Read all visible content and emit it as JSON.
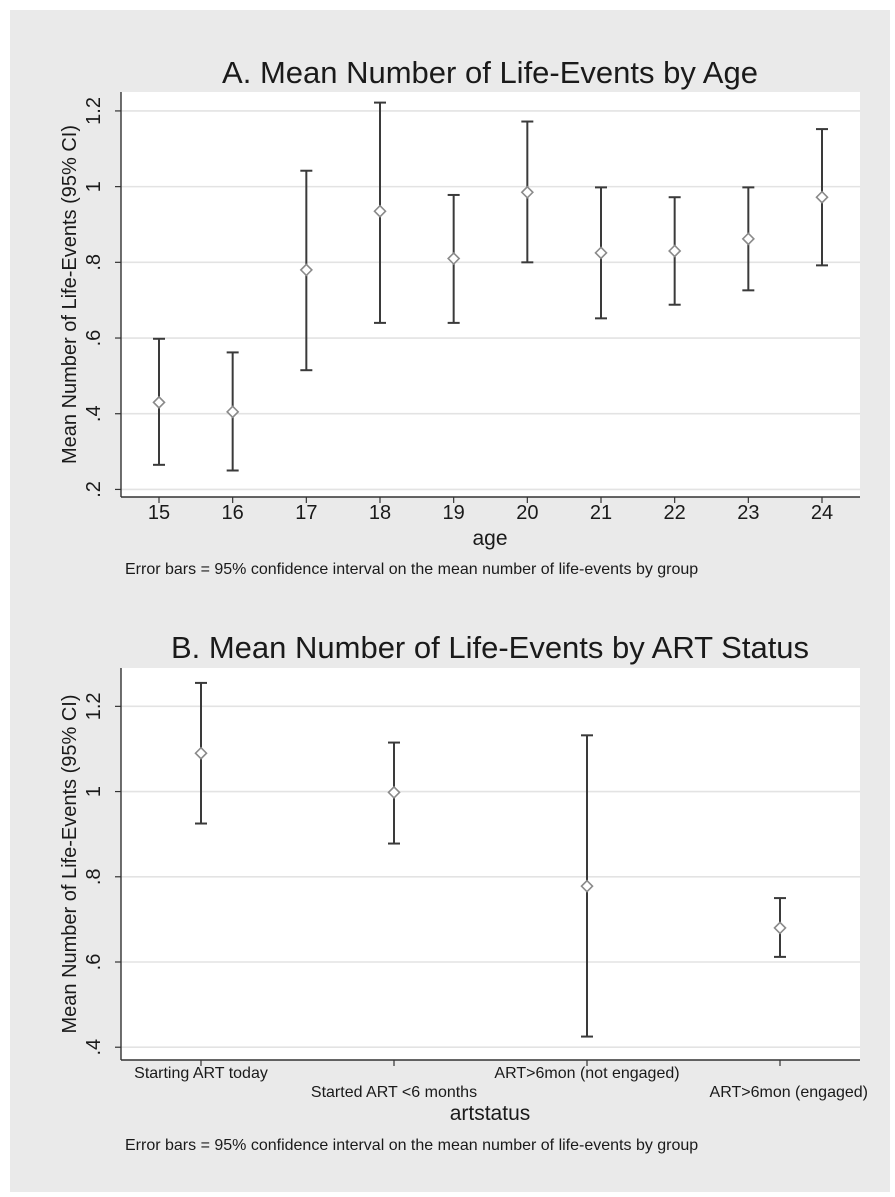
{
  "chart_data": [
    {
      "type": "errorbar",
      "title": "A. Mean Number of Life-Events by Age",
      "xlabel": "age",
      "ylabel": "Mean Number of Life-Events (95% CI)",
      "note": "Error bars = 95% confidence interval on the mean number of life-events by group",
      "categories": [
        "15",
        "16",
        "17",
        "18",
        "19",
        "20",
        "21",
        "22",
        "23",
        "24"
      ],
      "means": [
        0.43,
        0.405,
        0.78,
        0.935,
        0.81,
        0.985,
        0.825,
        0.83,
        0.862,
        0.972
      ],
      "lower": [
        0.265,
        0.25,
        0.515,
        0.64,
        0.64,
        0.8,
        0.652,
        0.688,
        0.726,
        0.792
      ],
      "upper": [
        0.598,
        0.562,
        1.042,
        1.222,
        0.978,
        1.172,
        0.998,
        0.972,
        0.998,
        1.152
      ],
      "yticks": [
        0.2,
        0.4,
        0.6,
        0.8,
        1.0,
        1.2
      ],
      "ytick_labels": [
        ".2",
        ".4",
        ".6",
        ".8",
        "1",
        "1.2"
      ],
      "ylim": [
        0.18,
        1.25
      ],
      "grid": true,
      "series_color": "#3a3a3a",
      "marker_color": "#8a8a8a"
    },
    {
      "type": "errorbar",
      "title": "B. Mean Number of Life-Events by ART Status",
      "xlabel": "artstatus",
      "ylabel": "Mean Number of Life-Events (95% CI)",
      "note": "Error bars = 95% confidence interval on the mean number of life-events by group",
      "categories": [
        "Starting ART today",
        "Started ART <6 months",
        "ART>6mon (not engaged)",
        "ART>6mon (engaged)"
      ],
      "means": [
        1.09,
        0.998,
        0.778,
        0.68
      ],
      "lower": [
        0.925,
        0.878,
        0.425,
        0.612
      ],
      "upper": [
        1.255,
        1.115,
        1.132,
        0.75
      ],
      "yticks": [
        0.4,
        0.6,
        0.8,
        1.0,
        1.2
      ],
      "ytick_labels": [
        ".4",
        ".6",
        ".8",
        "1",
        "1.2"
      ],
      "ylim": [
        0.37,
        1.29
      ],
      "grid": true,
      "series_color": "#3a3a3a",
      "marker_color": "#8a8a8a"
    }
  ]
}
